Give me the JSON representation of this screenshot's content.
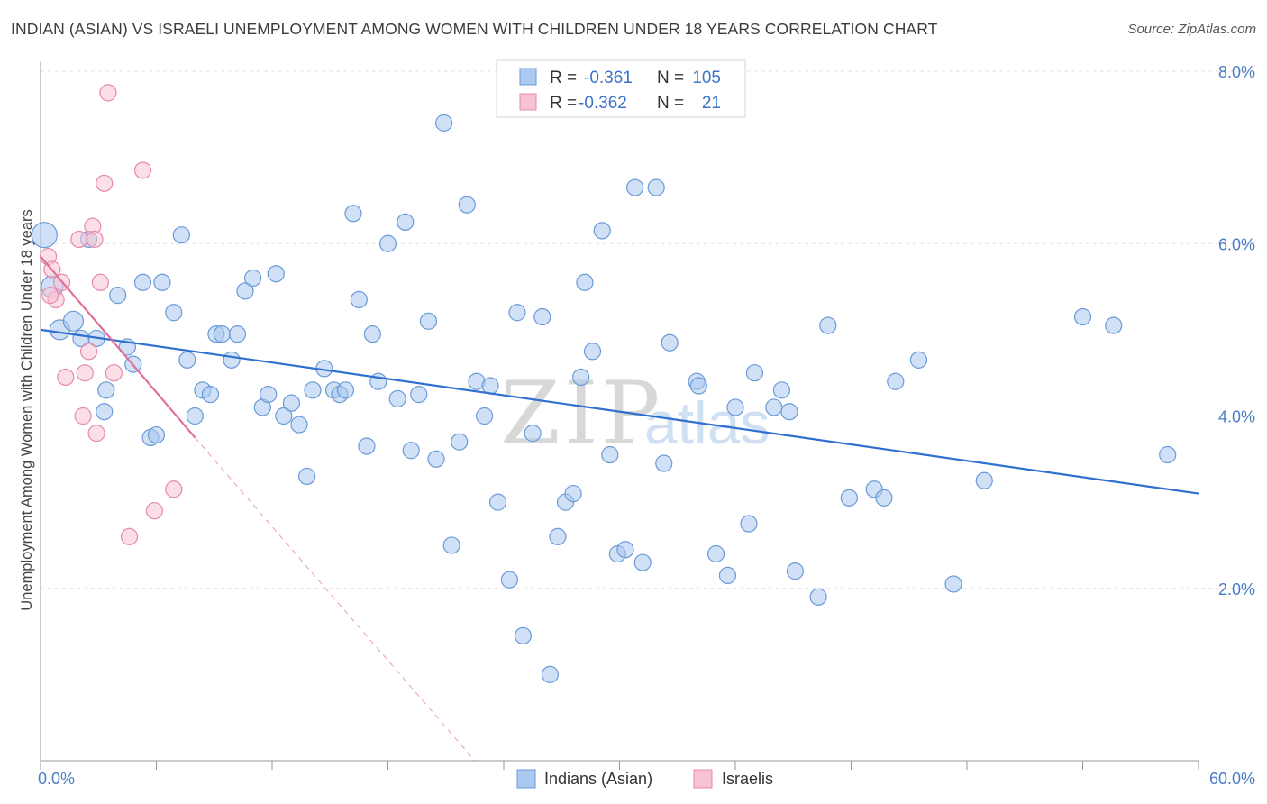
{
  "title": "INDIAN (ASIAN) VS ISRAELI UNEMPLOYMENT AMONG WOMEN WITH CHILDREN UNDER 18 YEARS CORRELATION CHART",
  "source": "Source: ZipAtlas.com",
  "watermark": {
    "zip": "ZIP",
    "atlas": "atlas"
  },
  "legend_top": [
    {
      "r_label": "R =",
      "r_value": "-0.361",
      "n_label": "N =",
      "n_value": "105",
      "color": "#aac8f0",
      "stroke": "#6a9ad8"
    },
    {
      "r_label": "R =",
      "r_value": "-0.362",
      "n_label": "N =",
      "n_value": "21",
      "color": "#f7c3d4",
      "stroke": "#e58aa8"
    }
  ],
  "legend_bottom": [
    {
      "label": "Indians (Asian)",
      "color": "#aac8f0",
      "stroke": "#6a9ad8"
    },
    {
      "label": "Israelis",
      "color": "#f7c3d4",
      "stroke": "#e58aa8"
    }
  ],
  "chart_data": {
    "type": "scatter",
    "title": "INDIAN (ASIAN) VS ISRAELI UNEMPLOYMENT AMONG WOMEN WITH CHILDREN UNDER 18 YEARS CORRELATION CHART",
    "xlabel": "",
    "ylabel": "Unemployment Among Women with Children Under 18 years",
    "xlim": [
      0,
      60
    ],
    "ylim": [
      0,
      8.0
    ],
    "x_tick_labels": [
      "0.0%",
      "60.0%"
    ],
    "y_ticks": [
      2,
      4,
      6,
      8
    ],
    "y_tick_labels": [
      "2.0%",
      "4.0%",
      "6.0%",
      "8.0%"
    ],
    "grid": true,
    "legend_position": "top-center",
    "series": [
      {
        "name": "Indians (Asian)",
        "color": "#aac8f0",
        "stroke": "#6a9ad8",
        "trend": {
          "x": [
            0,
            60
          ],
          "y": [
            5.0,
            3.1
          ],
          "color": "#2f6fd0"
        },
        "points": [
          {
            "x": 0.2,
            "y": 6.1,
            "s": 14
          },
          {
            "x": 0.6,
            "y": 5.5,
            "s": 12
          },
          {
            "x": 1.0,
            "y": 5.0,
            "s": 11
          },
          {
            "x": 1.7,
            "y": 5.1,
            "s": 11
          },
          {
            "x": 2.1,
            "y": 4.9
          },
          {
            "x": 2.5,
            "y": 6.05
          },
          {
            "x": 2.9,
            "y": 4.9
          },
          {
            "x": 3.4,
            "y": 4.3
          },
          {
            "x": 3.3,
            "y": 4.05
          },
          {
            "x": 4.0,
            "y": 5.4
          },
          {
            "x": 4.5,
            "y": 4.8
          },
          {
            "x": 4.8,
            "y": 4.6
          },
          {
            "x": 5.3,
            "y": 5.55
          },
          {
            "x": 5.7,
            "y": 3.75
          },
          {
            "x": 6.0,
            "y": 3.78
          },
          {
            "x": 6.3,
            "y": 5.55
          },
          {
            "x": 6.9,
            "y": 5.2
          },
          {
            "x": 7.3,
            "y": 6.1
          },
          {
            "x": 7.6,
            "y": 4.65
          },
          {
            "x": 8.0,
            "y": 4.0
          },
          {
            "x": 8.4,
            "y": 4.3
          },
          {
            "x": 8.8,
            "y": 4.25
          },
          {
            "x": 9.1,
            "y": 4.95
          },
          {
            "x": 9.4,
            "y": 4.95
          },
          {
            "x": 9.9,
            "y": 4.65
          },
          {
            "x": 10.2,
            "y": 4.95
          },
          {
            "x": 10.6,
            "y": 5.45
          },
          {
            "x": 11.0,
            "y": 5.6
          },
          {
            "x": 11.5,
            "y": 4.1
          },
          {
            "x": 11.8,
            "y": 4.25
          },
          {
            "x": 12.2,
            "y": 5.65
          },
          {
            "x": 12.6,
            "y": 4.0
          },
          {
            "x": 13.0,
            "y": 4.15
          },
          {
            "x": 13.4,
            "y": 3.9
          },
          {
            "x": 13.8,
            "y": 3.3
          },
          {
            "x": 14.1,
            "y": 4.3
          },
          {
            "x": 14.7,
            "y": 4.55
          },
          {
            "x": 15.2,
            "y": 4.3
          },
          {
            "x": 15.5,
            "y": 4.25
          },
          {
            "x": 15.8,
            "y": 4.3
          },
          {
            "x": 16.2,
            "y": 6.35
          },
          {
            "x": 16.5,
            "y": 5.35
          },
          {
            "x": 16.9,
            "y": 3.65
          },
          {
            "x": 17.2,
            "y": 4.95
          },
          {
            "x": 17.5,
            "y": 4.4
          },
          {
            "x": 18.0,
            "y": 6.0
          },
          {
            "x": 18.5,
            "y": 4.2
          },
          {
            "x": 18.9,
            "y": 6.25
          },
          {
            "x": 19.2,
            "y": 3.6
          },
          {
            "x": 19.6,
            "y": 4.25
          },
          {
            "x": 20.1,
            "y": 5.1
          },
          {
            "x": 20.5,
            "y": 3.5
          },
          {
            "x": 20.9,
            "y": 7.4
          },
          {
            "x": 21.3,
            "y": 2.5
          },
          {
            "x": 21.7,
            "y": 3.7
          },
          {
            "x": 22.1,
            "y": 6.45
          },
          {
            "x": 22.6,
            "y": 4.4
          },
          {
            "x": 23.0,
            "y": 4.0
          },
          {
            "x": 23.3,
            "y": 4.35
          },
          {
            "x": 23.7,
            "y": 3.0
          },
          {
            "x": 24.3,
            "y": 2.1
          },
          {
            "x": 24.7,
            "y": 5.2
          },
          {
            "x": 25.0,
            "y": 1.45
          },
          {
            "x": 25.5,
            "y": 3.8
          },
          {
            "x": 26.0,
            "y": 5.15
          },
          {
            "x": 26.4,
            "y": 1.0
          },
          {
            "x": 26.8,
            "y": 2.6
          },
          {
            "x": 27.2,
            "y": 3.0
          },
          {
            "x": 27.6,
            "y": 3.1
          },
          {
            "x": 28.0,
            "y": 4.45
          },
          {
            "x": 28.2,
            "y": 5.55
          },
          {
            "x": 28.6,
            "y": 4.75
          },
          {
            "x": 29.1,
            "y": 6.15
          },
          {
            "x": 29.5,
            "y": 3.55
          },
          {
            "x": 29.9,
            "y": 2.4
          },
          {
            "x": 30.3,
            "y": 2.45
          },
          {
            "x": 30.8,
            "y": 6.65
          },
          {
            "x": 31.2,
            "y": 2.3
          },
          {
            "x": 31.9,
            "y": 6.65
          },
          {
            "x": 32.3,
            "y": 3.45
          },
          {
            "x": 32.6,
            "y": 4.85
          },
          {
            "x": 34.0,
            "y": 4.4
          },
          {
            "x": 34.1,
            "y": 4.35
          },
          {
            "x": 35.0,
            "y": 2.4
          },
          {
            "x": 35.6,
            "y": 2.15
          },
          {
            "x": 36.0,
            "y": 4.1
          },
          {
            "x": 36.7,
            "y": 2.75
          },
          {
            "x": 37.0,
            "y": 4.5
          },
          {
            "x": 38.0,
            "y": 4.1
          },
          {
            "x": 38.4,
            "y": 4.3
          },
          {
            "x": 38.8,
            "y": 4.05
          },
          {
            "x": 39.1,
            "y": 2.2
          },
          {
            "x": 40.3,
            "y": 1.9
          },
          {
            "x": 40.8,
            "y": 5.05
          },
          {
            "x": 41.9,
            "y": 3.05
          },
          {
            "x": 43.2,
            "y": 3.15
          },
          {
            "x": 43.7,
            "y": 3.05
          },
          {
            "x": 44.3,
            "y": 4.4
          },
          {
            "x": 45.5,
            "y": 4.65
          },
          {
            "x": 47.3,
            "y": 2.05
          },
          {
            "x": 48.9,
            "y": 3.25
          },
          {
            "x": 54.0,
            "y": 5.15
          },
          {
            "x": 55.6,
            "y": 5.05
          },
          {
            "x": 58.4,
            "y": 3.55
          }
        ]
      },
      {
        "name": "Israelis",
        "color": "#f7c3d4",
        "stroke": "#e58aa8",
        "trend": {
          "x": [
            0,
            8.0
          ],
          "y": [
            5.85,
            3.75
          ],
          "dash_to": [
            22.5,
            0
          ],
          "color": "#e0709a"
        },
        "points": [
          {
            "x": 0.4,
            "y": 5.85
          },
          {
            "x": 0.6,
            "y": 5.7
          },
          {
            "x": 0.8,
            "y": 5.35
          },
          {
            "x": 1.1,
            "y": 5.55
          },
          {
            "x": 1.3,
            "y": 4.45
          },
          {
            "x": 2.0,
            "y": 6.05
          },
          {
            "x": 2.2,
            "y": 4.0
          },
          {
            "x": 2.3,
            "y": 4.5
          },
          {
            "x": 2.5,
            "y": 4.75
          },
          {
            "x": 2.7,
            "y": 6.2
          },
          {
            "x": 2.8,
            "y": 6.05
          },
          {
            "x": 2.9,
            "y": 3.8
          },
          {
            "x": 3.1,
            "y": 5.55
          },
          {
            "x": 3.3,
            "y": 6.7
          },
          {
            "x": 3.5,
            "y": 7.75
          },
          {
            "x": 3.8,
            "y": 4.5
          },
          {
            "x": 4.6,
            "y": 2.6
          },
          {
            "x": 5.3,
            "y": 6.85
          },
          {
            "x": 5.9,
            "y": 2.9
          },
          {
            "x": 6.9,
            "y": 3.15
          },
          {
            "x": 0.5,
            "y": 5.4
          }
        ]
      }
    ]
  }
}
